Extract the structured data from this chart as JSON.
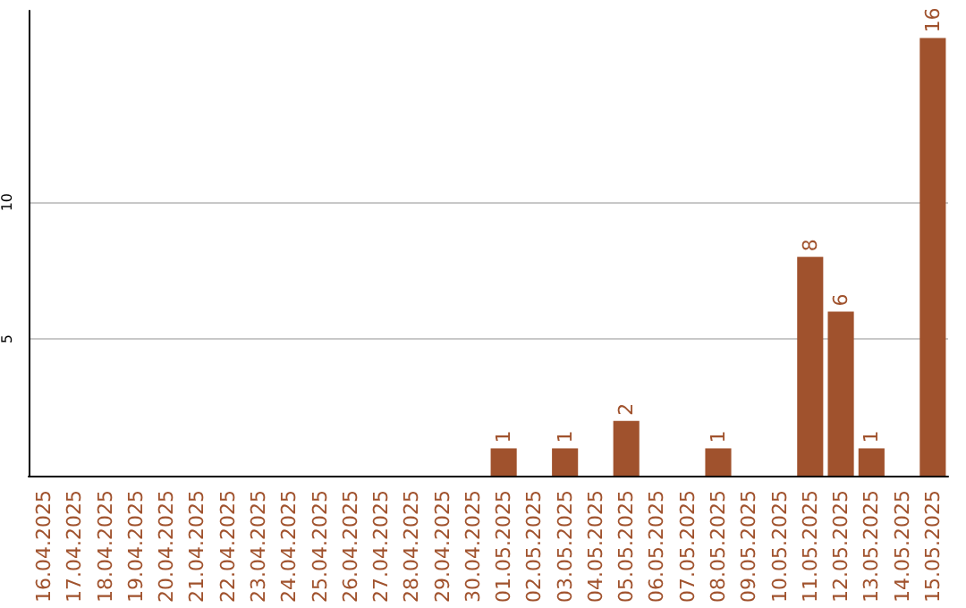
{
  "chart_data": {
    "type": "bar",
    "categories": [
      "16.04.2025",
      "17.04.2025",
      "18.04.2025",
      "19.04.2025",
      "20.04.2025",
      "21.04.2025",
      "22.04.2025",
      "23.04.2025",
      "24.04.2025",
      "25.04.2025",
      "26.04.2025",
      "27.04.2025",
      "28.04.2025",
      "29.04.2025",
      "30.04.2025",
      "01.05.2025",
      "02.05.2025",
      "03.05.2025",
      "04.05.2025",
      "05.05.2025",
      "06.05.2025",
      "07.05.2025",
      "08.05.2025",
      "09.05.2025",
      "10.05.2025",
      "11.05.2025",
      "12.05.2025",
      "13.05.2025",
      "14.05.2025",
      "15.05.2025"
    ],
    "values": [
      null,
      null,
      null,
      null,
      null,
      null,
      null,
      null,
      null,
      null,
      null,
      null,
      null,
      null,
      null,
      1,
      null,
      1,
      null,
      2,
      null,
      null,
      1,
      null,
      null,
      8,
      6,
      1,
      null,
      16
    ],
    "color": "#a0522d",
    "ylim": [
      0,
      17
    ],
    "yticks": [
      5,
      10
    ],
    "grid": "y",
    "data_labels": true
  }
}
